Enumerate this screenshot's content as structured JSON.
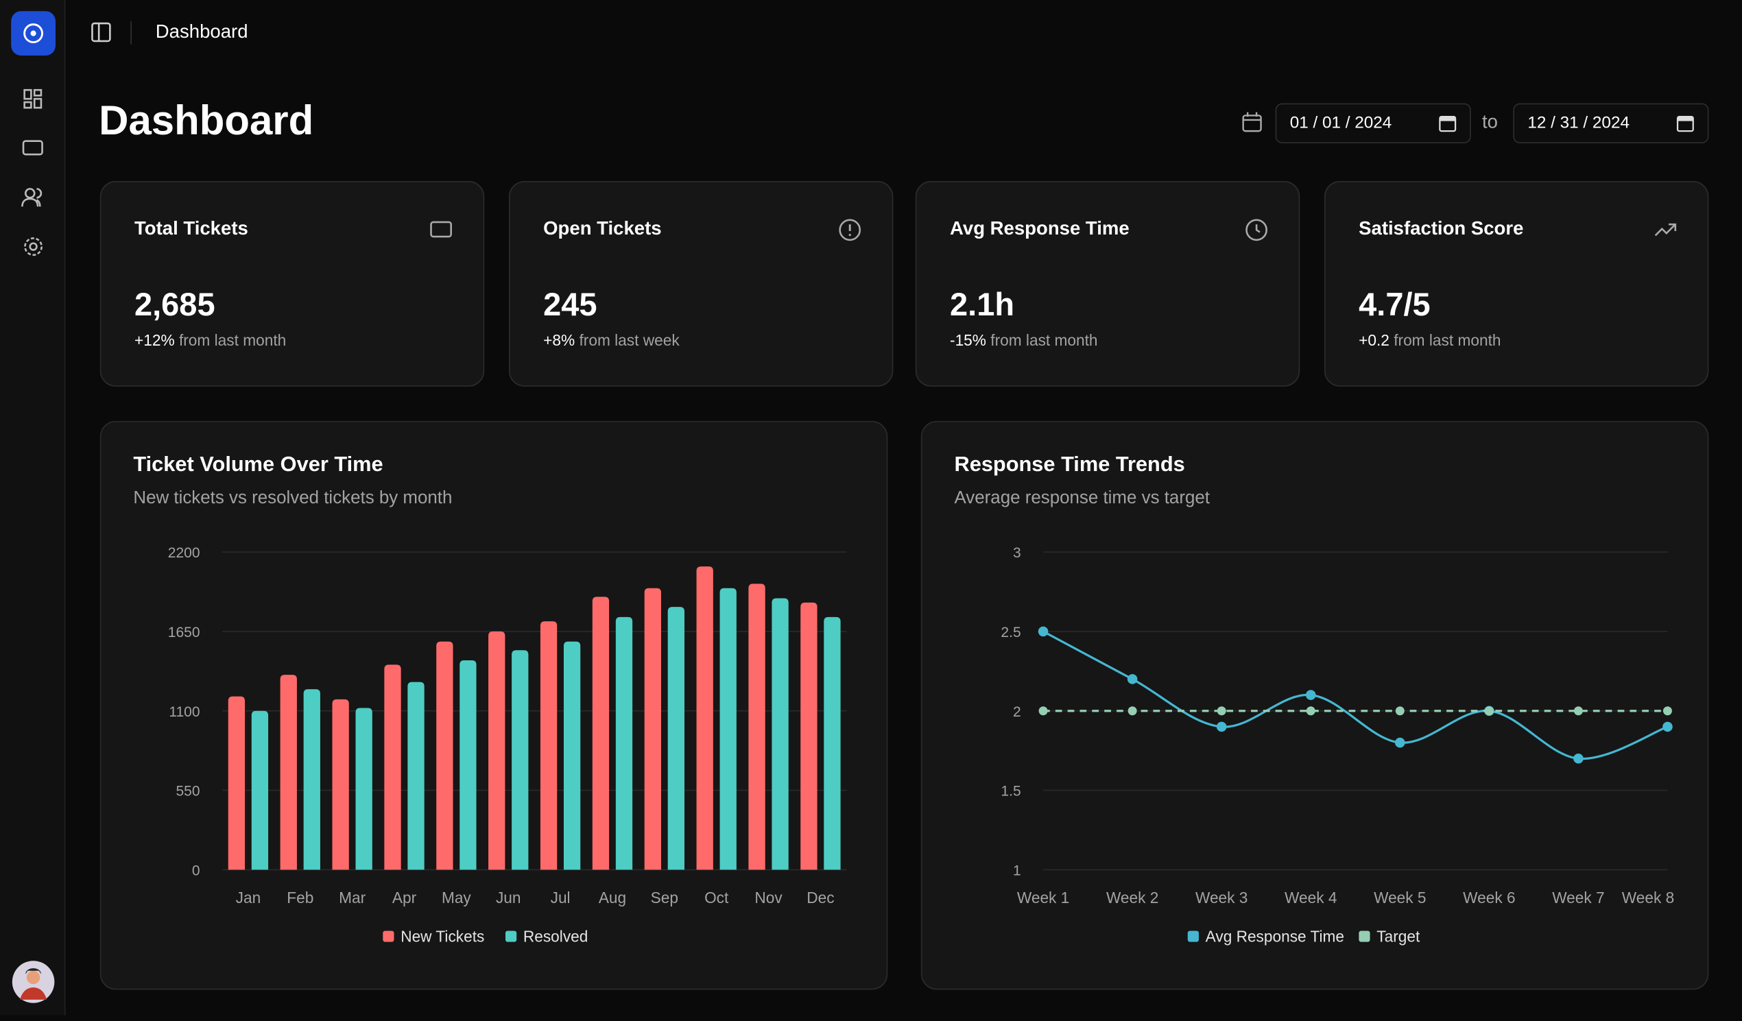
{
  "nav": {
    "breadcrumb": "Dashboard"
  },
  "page_title": "Dashboard",
  "date_range": {
    "start": "01 / 01 / 2024",
    "separator": "to",
    "end": "12 / 31 / 2024"
  },
  "stats": [
    {
      "title": "Total Tickets",
      "value": "2,685",
      "change": "+12%",
      "note": "from last month"
    },
    {
      "title": "Open Tickets",
      "value": "245",
      "change": "+8%",
      "note": "from last week"
    },
    {
      "title": "Avg Response Time",
      "value": "2.1h",
      "change": "-15%",
      "note": "from last month"
    },
    {
      "title": "Satisfaction Score",
      "value": "4.7/5",
      "change": "+0.2",
      "note": "from last month"
    }
  ],
  "chart_data": [
    {
      "type": "bar",
      "title": "Ticket Volume Over Time",
      "subtitle": "New tickets vs resolved tickets by month",
      "categories": [
        "Jan",
        "Feb",
        "Mar",
        "Apr",
        "May",
        "Jun",
        "Jul",
        "Aug",
        "Sep",
        "Oct",
        "Nov",
        "Dec"
      ],
      "series": [
        {
          "name": "New Tickets",
          "color": "#ff6b6b",
          "values": [
            1200,
            1350,
            1180,
            1420,
            1580,
            1650,
            1720,
            1890,
            1950,
            2100,
            1980,
            1850
          ]
        },
        {
          "name": "Resolved",
          "color": "#4ecdc4",
          "values": [
            1100,
            1250,
            1120,
            1300,
            1450,
            1520,
            1580,
            1750,
            1820,
            1950,
            1880,
            1750
          ]
        }
      ],
      "ylim": [
        0,
        2200
      ],
      "yticks": [
        0,
        550,
        1100,
        1650,
        2200
      ],
      "grid": true,
      "legend": "bottom"
    },
    {
      "type": "line",
      "title": "Response Time Trends",
      "subtitle": "Average response time vs target",
      "categories": [
        "Week 1",
        "Week 2",
        "Week 3",
        "Week 4",
        "Week 5",
        "Week 6",
        "Week 7",
        "Week 8"
      ],
      "series": [
        {
          "name": "Avg Response Time",
          "color": "#45b7d1",
          "values": [
            2.5,
            2.2,
            1.9,
            2.1,
            1.8,
            2.0,
            1.7,
            1.9
          ]
        },
        {
          "name": "Target",
          "color": "#96ceb4",
          "values": [
            2,
            2,
            2,
            2,
            2,
            2,
            2,
            2
          ],
          "dashed": true
        }
      ],
      "ylim": [
        1,
        3
      ],
      "yticks": [
        1,
        1.5,
        2,
        2.5,
        3
      ],
      "grid": true,
      "legend": "bottom"
    }
  ]
}
